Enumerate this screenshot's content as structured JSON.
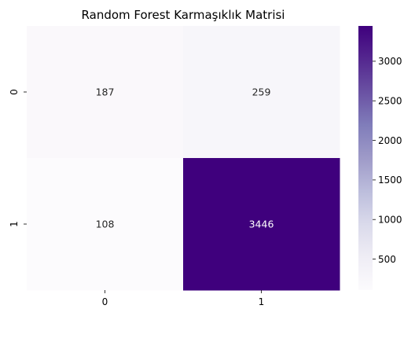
{
  "chart_data": {
    "type": "heatmap",
    "title": "Random Forest Karmaşıklık Matrisi",
    "xlabel": "",
    "ylabel": "",
    "x_categories": [
      "0",
      "1"
    ],
    "y_categories": [
      "0",
      "1"
    ],
    "values": [
      [
        187,
        259
      ],
      [
        108,
        3446
      ]
    ],
    "value_labels": [
      [
        "187",
        "259"
      ],
      [
        "108",
        "3446"
      ]
    ],
    "colormap": "Purples",
    "vmin": 108,
    "vmax": 3446,
    "colorbar_ticks": [
      500,
      1000,
      1500,
      2000,
      2500,
      3000
    ],
    "colorbar_tick_labels": [
      "500",
      "1000",
      "1500",
      "2000",
      "2500",
      "3000"
    ],
    "light_text_color": "#ffffff",
    "dark_text_color": "#262626",
    "cmap_stops": [
      "#fcfbfd",
      "#efedf5",
      "#dadaeb",
      "#bcbddc",
      "#9e9ac8",
      "#807dba",
      "#6a51a3",
      "#54278f",
      "#3f007d"
    ]
  }
}
